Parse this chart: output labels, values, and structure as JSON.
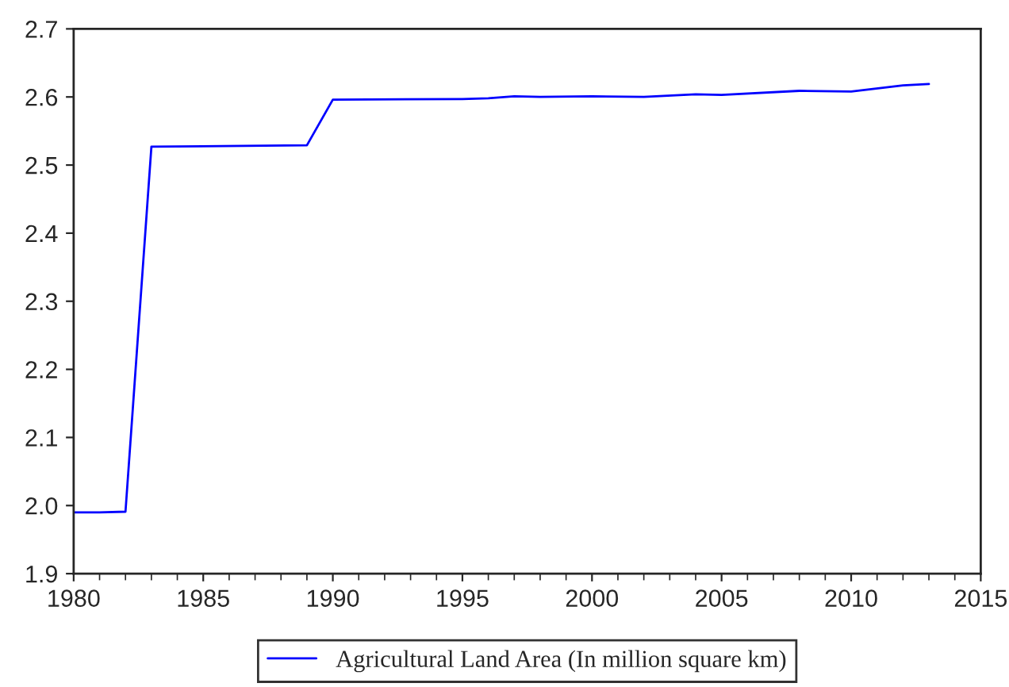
{
  "chart_data": {
    "type": "line",
    "x": [
      1980,
      1981,
      1982,
      1983,
      1989,
      1990,
      1995,
      1996,
      1997,
      1998,
      2000,
      2002,
      2004,
      2005,
      2008,
      2010,
      2012,
      2013
    ],
    "series": [
      {
        "name": "Agricultural Land Area (In million square km)",
        "color": "#0000ff",
        "values": [
          1.99,
          1.99,
          1.991,
          2.527,
          2.529,
          2.596,
          2.597,
          2.598,
          2.601,
          2.6,
          2.601,
          2.6,
          2.604,
          2.603,
          2.609,
          2.608,
          2.617,
          2.619
        ]
      }
    ],
    "xlim": [
      1980,
      2015
    ],
    "xticks": [
      1980,
      1985,
      1990,
      1995,
      2000,
      2005,
      2010,
      2015
    ],
    "ylim": [
      1.9,
      2.7
    ],
    "yticks": [
      1.9,
      {
        "value": 2,
        "label": "2.0"
      },
      2.1,
      2.2,
      2.3,
      2.4,
      2.5,
      2.6,
      2.7
    ],
    "grid": false,
    "legend": "bottom",
    "marker": "none",
    "line_style": "solid"
  }
}
